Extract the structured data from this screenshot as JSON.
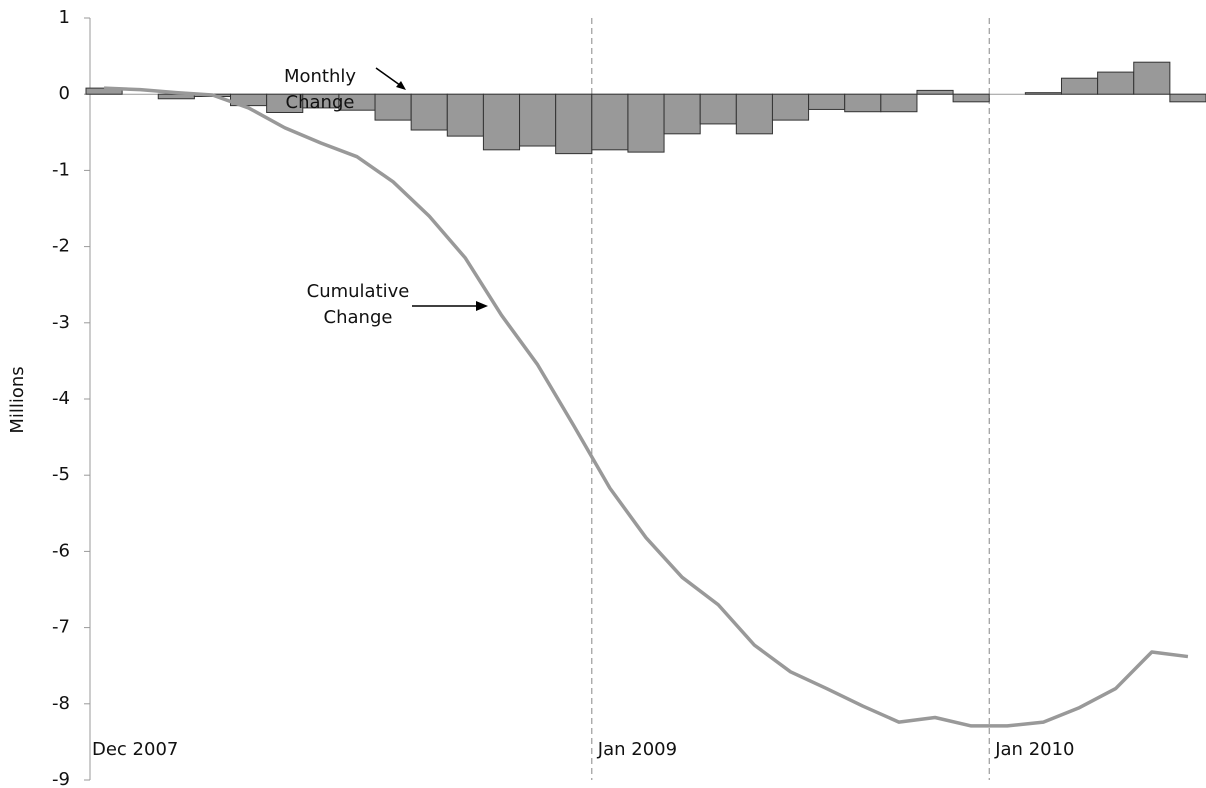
{
  "chart_data": {
    "type": "bar-line",
    "y_label": "Millions",
    "categories": [
      "Dec 2007",
      null,
      null,
      null,
      null,
      null,
      null,
      null,
      null,
      null,
      null,
      null,
      null,
      null,
      "Jan 2009",
      null,
      null,
      null,
      null,
      null,
      null,
      null,
      null,
      null,
      null,
      "Jan 2010",
      null,
      null,
      null,
      null,
      null
    ],
    "series": [
      {
        "name": "Monthly Change",
        "type": "bar",
        "color": "#999999",
        "values": [
          0.08,
          0,
          -0.06,
          -0.03,
          -0.15,
          -0.24,
          -0.18,
          -0.21,
          -0.34,
          -0.47,
          -0.55,
          -0.73,
          -0.68,
          -0.78,
          -0.73,
          -0.76,
          -0.52,
          -0.39,
          -0.52,
          -0.34,
          -0.2,
          -0.23,
          -0.23,
          0.05,
          -0.1,
          0,
          0.02,
          0.21,
          0.29,
          0.42,
          -0.1
        ]
      },
      {
        "name": "Cumulative Change",
        "type": "line",
        "color": "#999999",
        "values": [
          0.08,
          0.06,
          0.02,
          -0.01,
          -0.18,
          -0.44,
          -0.64,
          -0.82,
          -1.15,
          -1.6,
          -2.15,
          -2.9,
          -3.55,
          -4.35,
          -5.17,
          -5.82,
          -6.34,
          -6.7,
          -7.23,
          -7.58,
          -7.8,
          -8.03,
          -8.24,
          -8.18,
          -8.29,
          -8.29,
          -8.24,
          -8.05,
          -7.8,
          -7.32,
          -7.38
        ]
      }
    ],
    "ylim": [
      -9,
      1
    ],
    "yticks": [
      -9,
      -8,
      -7,
      -6,
      -5,
      -4,
      -3,
      -2,
      -1,
      0,
      1
    ]
  }
}
